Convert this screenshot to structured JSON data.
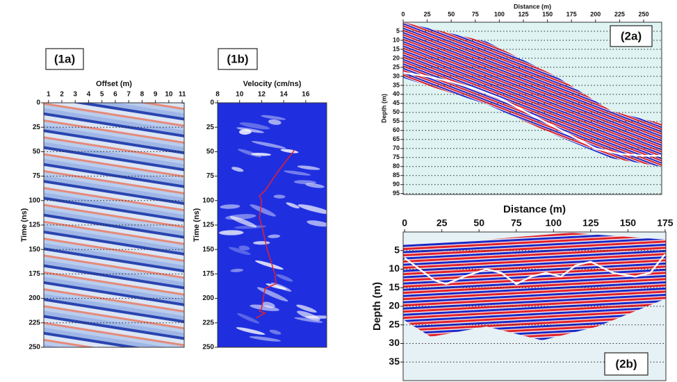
{
  "chart_data": [
    {
      "type": "image",
      "panel_label": "(1a)",
      "x_label": "Offset (m)",
      "y_label": "Time (ns)",
      "xlim": [
        0.65,
        11.15
      ],
      "xticks": [
        1,
        2,
        3,
        4,
        5,
        6,
        7,
        8,
        9,
        10,
        11
      ],
      "ylim": [
        0,
        250
      ],
      "yticks": [
        0,
        25,
        50,
        75,
        100,
        125,
        150,
        175,
        200,
        225,
        250
      ],
      "grid": "y"
    },
    {
      "type": "line",
      "panel_label": "(1b)",
      "x_label": "Velocity (cm/ns)",
      "y_label": "Time (ns)",
      "xlim": [
        8,
        17.9
      ],
      "xticks": [
        8,
        10,
        12,
        14,
        16
      ],
      "ylim": [
        0,
        250
      ],
      "yticks": [
        0,
        25,
        50,
        75,
        100,
        125,
        150,
        175,
        200,
        225,
        250
      ],
      "grid": "none",
      "series": [
        {
          "color": "#e8202a",
          "x": [
            15.0,
            13.5,
            12.3,
            11.8,
            12.0,
            11.8,
            12.0,
            12.5,
            13.2,
            13.3,
            12.3,
            12.0,
            11.8,
            12.3,
            11.5
          ],
          "values": [
            48,
            70,
            90,
            95,
            100,
            118,
            125,
            150,
            175,
            185,
            190,
            210,
            213,
            215,
            220
          ]
        }
      ]
    },
    {
      "type": "line",
      "panel_label": "(2a)",
      "x_label": "Distance (m)",
      "y_label": "Depth (m)",
      "xlim": [
        0,
        268.8
      ],
      "xticks": [
        0,
        25,
        50,
        75,
        100,
        125,
        150,
        175,
        200,
        225,
        250
      ],
      "ylim": [
        0,
        95.5
      ],
      "yticks": [
        5,
        10,
        15,
        20,
        25,
        30,
        35,
        40,
        45,
        50,
        55,
        60,
        65,
        70,
        75,
        80,
        85,
        90,
        95
      ],
      "grid": "y",
      "series": [
        {
          "color": "#ffffff",
          "x": [
            0,
            25,
            50,
            75,
            100,
            125,
            150,
            175,
            200,
            225,
            250,
            268
          ],
          "values": [
            28,
            30,
            33,
            37,
            42,
            49,
            56,
            63,
            70,
            73,
            74,
            74
          ]
        }
      ]
    },
    {
      "type": "line",
      "panel_label": "(2b)",
      "x_label": "Distance (m)",
      "y_label": "Depth (m)",
      "xlim": [
        -1,
        175.5
      ],
      "xticks": [
        0,
        25,
        50,
        75,
        100,
        125,
        150,
        175
      ],
      "ylim": [
        0,
        40
      ],
      "yticks": [
        5,
        10,
        15,
        20,
        25,
        30,
        35
      ],
      "grid": "y",
      "series": [
        {
          "color": "#ffffff",
          "x": [
            0,
            10,
            20,
            28,
            40,
            55,
            65,
            75,
            85,
            95,
            105,
            115,
            125,
            140,
            155,
            165,
            175
          ],
          "values": [
            7,
            10,
            13,
            14,
            12,
            10,
            11,
            14,
            12,
            11,
            12,
            9,
            8,
            11,
            12,
            11,
            6
          ]
        }
      ]
    }
  ]
}
